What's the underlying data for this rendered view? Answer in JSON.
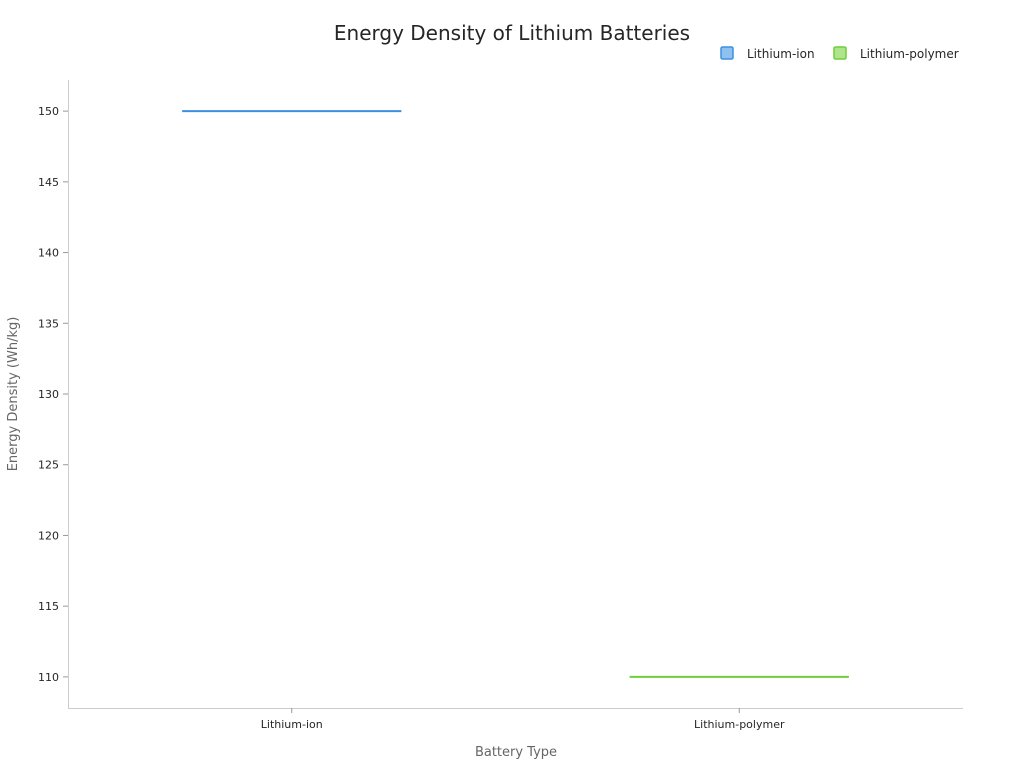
{
  "chart_data": {
    "type": "bar",
    "title": "Energy Density of Lithium Batteries",
    "xlabel": "Battery Type",
    "ylabel": "Energy Density (Wh/kg)",
    "categories": [
      "Lithium-ion",
      "Lithium-polymer"
    ],
    "series": [
      {
        "name": "Lithium-ion",
        "values": [
          150,
          null
        ],
        "color": "#3d8fe0",
        "fill": "#8fc0ef"
      },
      {
        "name": "Lithium-polymer",
        "values": [
          null,
          110
        ],
        "color": "#6fcf3a",
        "fill": "#aee58a"
      }
    ],
    "ylim": [
      107.8,
      152.2
    ],
    "yticks": [
      "110",
      "115",
      "120",
      "125",
      "130",
      "135",
      "140",
      "145",
      "150"
    ],
    "grid": false,
    "legend_position": "top-right"
  }
}
